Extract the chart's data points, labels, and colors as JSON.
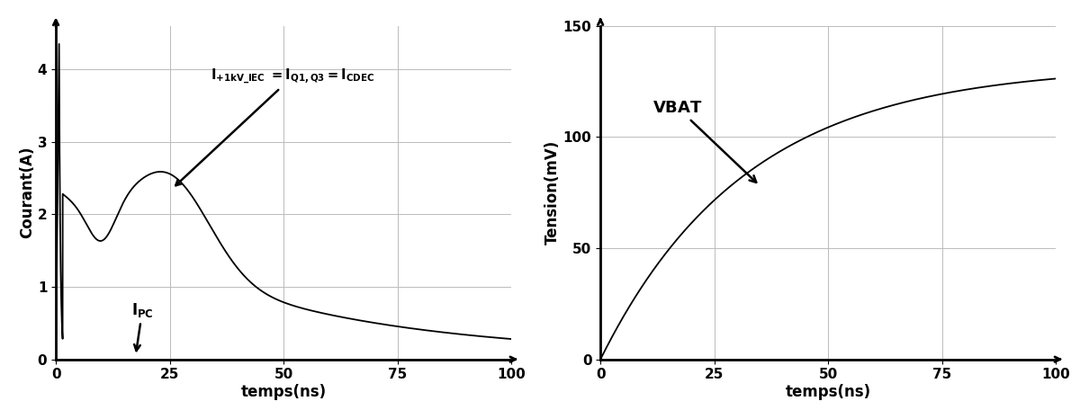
{
  "left_xlabel": "temps(ns)",
  "left_ylabel": "Courant(A)",
  "left_xlim": [
    0,
    100
  ],
  "left_ylim": [
    0,
    4.6
  ],
  "left_xticks": [
    0,
    25,
    50,
    75,
    100
  ],
  "left_yticks": [
    0,
    1,
    2,
    3,
    4
  ],
  "right_xlabel": "temps(ns)",
  "right_ylabel": "Tension(mV)",
  "right_xlim": [
    0,
    100
  ],
  "right_ylim": [
    0,
    150
  ],
  "right_xticks": [
    0,
    25,
    50,
    75,
    100
  ],
  "right_yticks": [
    0,
    50,
    100,
    150
  ],
  "line_color": "#000000",
  "bg_color": "#ffffff",
  "grid_color": "#bbbbbb"
}
